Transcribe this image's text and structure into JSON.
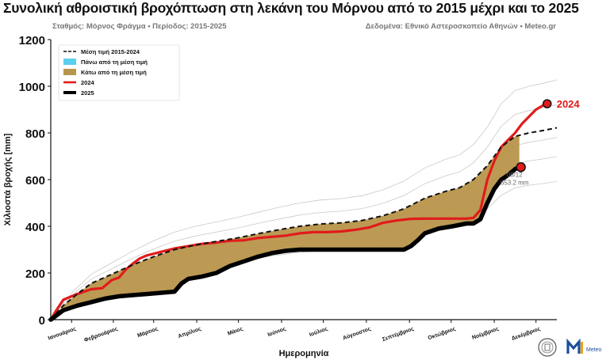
{
  "header": {
    "title": "Συνολική αθροιστική βροχόπτωση στη λεκάνη του Μόρνου από το 2015 μέχρι και το 2025",
    "subtitle_left": "Σταθμός: Μόρνος Φράγμα • Περίοδος: 2015-2025",
    "subtitle_right": "Δεδομένα: Εθνικό Αστεροσκοπείο Αθηνών • Meteo.gr"
  },
  "logos": {
    "meteo_label": "Meteo",
    "seal_icon": "noa-seal-icon",
    "meteo_icon": "meteo-logo-icon"
  },
  "chart_data": {
    "type": "line",
    "xlabel": "Ημερομηνία",
    "ylabel": "Χιλιοστά βροχής [mm]",
    "ylim": [
      0,
      1200
    ],
    "yticks": [
      0,
      200,
      400,
      600,
      800,
      1000,
      1200
    ],
    "xlim": [
      1,
      365
    ],
    "categories": [
      "Ιανουάριος",
      "Φεβρουάριος",
      "Μάρτιος",
      "Απρίλιος",
      "Μάιος",
      "Ιούνιος",
      "Ιούλιος",
      "Αύγουστος",
      "Σεπτέμβριος",
      "Οκτώβριος",
      "Νοέμβριος",
      "Δεκέμβριος"
    ],
    "category_day": [
      16,
      46,
      75,
      106,
      136,
      167,
      197,
      228,
      259,
      289,
      320,
      350
    ],
    "grid": false,
    "legend_position": "top-left",
    "legend": [
      {
        "label": "Μέση τιμή 2015-2024",
        "style": "dashed",
        "color": "#111111"
      },
      {
        "label": "Πάνω από τη μέση τιμή",
        "style": "fill",
        "color": "#5bcfef"
      },
      {
        "label": "Κάτω από τη μέση τιμή",
        "style": "fill",
        "color": "#b8954a"
      },
      {
        "label": "2024",
        "style": "line",
        "color": "#e11b1b"
      },
      {
        "label": "2025",
        "style": "line",
        "color": "#000000"
      }
    ],
    "series": [
      {
        "name": "Μέση τιμή 2015-2024",
        "color": "#111111",
        "x": [
          1,
          10,
          20,
          30,
          45,
          60,
          75,
          90,
          105,
          120,
          135,
          150,
          165,
          180,
          195,
          210,
          225,
          240,
          255,
          270,
          285,
          295,
          305,
          315,
          325,
          335,
          345,
          355,
          365
        ],
        "y": [
          0,
          60,
          110,
          155,
          195,
          235,
          270,
          300,
          320,
          335,
          350,
          368,
          385,
          400,
          410,
          415,
          425,
          445,
          475,
          520,
          550,
          565,
          600,
          660,
          740,
          785,
          800,
          810,
          822
        ]
      },
      {
        "name": "2024",
        "color": "#e11b1b",
        "x": [
          1,
          5,
          10,
          20,
          30,
          38,
          45,
          50,
          55,
          60,
          65,
          70,
          80,
          90,
          100,
          110,
          120,
          130,
          140,
          150,
          160,
          170,
          180,
          190,
          200,
          210,
          220,
          230,
          240,
          250,
          260,
          270,
          280,
          290,
          300,
          305,
          310,
          315,
          320,
          325,
          330,
          335,
          340,
          345,
          350,
          355,
          358
        ],
        "y": [
          0,
          40,
          85,
          110,
          130,
          135,
          170,
          180,
          215,
          240,
          262,
          275,
          290,
          305,
          315,
          325,
          330,
          338,
          340,
          350,
          355,
          360,
          370,
          375,
          375,
          378,
          385,
          395,
          415,
          425,
          432,
          433,
          433,
          433,
          433,
          436,
          470,
          600,
          680,
          740,
          770,
          800,
          840,
          870,
          900,
          918,
          925
        ]
      },
      {
        "name": "2025",
        "color": "#000000",
        "x": [
          1,
          10,
          20,
          30,
          40,
          50,
          60,
          70,
          80,
          90,
          95,
          100,
          110,
          120,
          130,
          140,
          150,
          160,
          170,
          180,
          190,
          200,
          210,
          220,
          230,
          240,
          250,
          255,
          260,
          265,
          270,
          280,
          290,
          300,
          305,
          310,
          315,
          320,
          325,
          330,
          335,
          338
        ],
        "y": [
          0,
          40,
          60,
          75,
          90,
          100,
          105,
          110,
          115,
          120,
          155,
          175,
          185,
          200,
          230,
          250,
          270,
          285,
          295,
          300,
          300,
          300,
          300,
          300,
          300,
          300,
          300,
          300,
          315,
          340,
          370,
          390,
          400,
          412,
          412,
          430,
          500,
          560,
          600,
          620,
          645,
          653
        ]
      }
    ],
    "annotations": [
      {
        "label": "2024",
        "x": 358,
        "y": 925,
        "color": "#e11b1b"
      },
      {
        "label": "08/12",
        "sublabel": "653.2 mm",
        "x": 338,
        "y": 653.2,
        "color": "#666666"
      }
    ]
  }
}
